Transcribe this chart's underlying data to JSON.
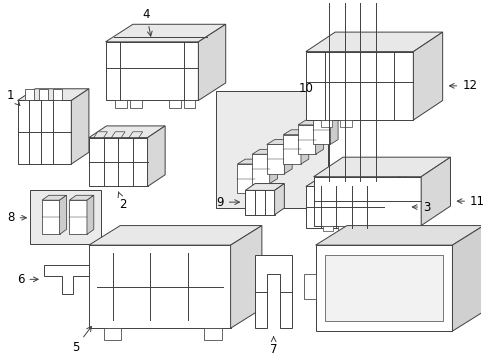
{
  "bg_color": "#ffffff",
  "line_color": "#404040",
  "label_color": "#000000",
  "font_size": 8.5,
  "lw": 0.7
}
